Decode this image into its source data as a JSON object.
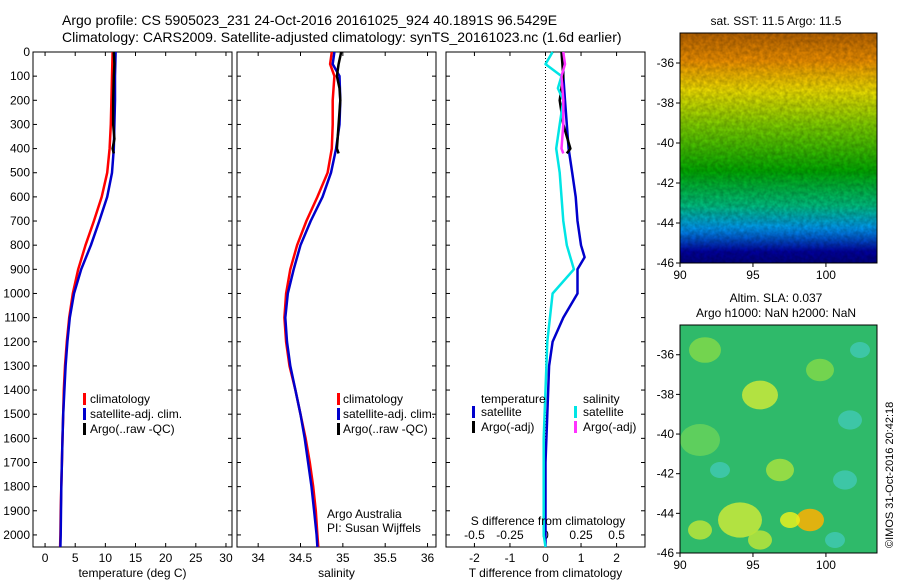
{
  "header": {
    "line1": "Argo profile: CS 5905023_231 24-Oct-2016 20161025_924 40.1891S 96.5429E",
    "line2": "Climatology: CARS2009. Satellite-adjusted climatology: synTS_20161023.nc (1.6d earlier)"
  },
  "footer": {
    "credit": "©IMOS 31-Oct-2016 20:42:18",
    "institution": "Argo Australia",
    "pi": "PI: Susan Wijffels"
  },
  "colors": {
    "climatology": "#ff0000",
    "satellite": "#0000cc",
    "argo": "#000000",
    "satellite_s": "#00e5e5",
    "argo_s": "#ff33ff"
  },
  "chart_data": [
    {
      "id": "temperature",
      "type": "line",
      "xlabel": "temperature (deg C)",
      "xlim": [
        -2,
        31
      ],
      "xticks": [
        0,
        5,
        10,
        15,
        20,
        25,
        30
      ],
      "ylim": [
        2050,
        0
      ],
      "yticks": [
        0,
        100,
        200,
        300,
        400,
        500,
        600,
        700,
        800,
        900,
        1000,
        1100,
        1200,
        1300,
        1400,
        1500,
        1600,
        1700,
        1800,
        1900,
        2000
      ],
      "legend": [
        "climatology",
        "satellite-adj. clim.",
        "Argo(..raw -QC)"
      ],
      "series": [
        {
          "name": "climatology",
          "color": "#ff0000",
          "depth": [
            0,
            100,
            200,
            300,
            400,
            500,
            600,
            700,
            800,
            900,
            1000,
            1100,
            1200,
            1300,
            1400,
            1500,
            1600,
            1700,
            1800,
            1900,
            2000,
            2050
          ],
          "values": [
            11.2,
            11.1,
            11.0,
            10.9,
            10.7,
            10.3,
            9.4,
            8.1,
            6.7,
            5.5,
            4.6,
            4.0,
            3.6,
            3.3,
            3.1,
            3.0,
            2.9,
            2.8,
            2.7,
            2.6,
            2.55,
            2.5
          ]
        },
        {
          "name": "satellite-adj. clim.",
          "color": "#0000cc",
          "depth": [
            0,
            100,
            200,
            300,
            400,
            500,
            600,
            700,
            800,
            900,
            1000,
            1100,
            1200,
            1300,
            1400,
            1500,
            1600,
            1700,
            1800,
            1900,
            2000,
            2050
          ],
          "values": [
            11.7,
            11.6,
            11.6,
            11.5,
            11.4,
            11.1,
            10.3,
            9.0,
            7.6,
            6.0,
            4.8,
            4.1,
            3.7,
            3.4,
            3.2,
            3.0,
            2.9,
            2.8,
            2.7,
            2.65,
            2.6,
            2.55
          ]
        },
        {
          "name": "Argo(..raw -QC)",
          "color": "#000000",
          "depth": [
            0,
            50,
            100,
            200,
            300,
            360,
            400,
            420
          ],
          "values": [
            11.4,
            11.5,
            11.4,
            11.3,
            11.3,
            11.5,
            11.2,
            11.4
          ]
        }
      ]
    },
    {
      "id": "salinity",
      "type": "line",
      "xlabel": "salinity",
      "xlim": [
        33.75,
        36.1
      ],
      "xticks": [
        34,
        34.5,
        35,
        35.5,
        36
      ],
      "ylim": [
        2050,
        0
      ],
      "legend": [
        "climatology",
        "satellite-adj. clim.",
        "Argo(..raw -QC)"
      ],
      "series": [
        {
          "name": "climatology",
          "color": "#ff0000",
          "depth": [
            0,
            50,
            100,
            200,
            300,
            400,
            500,
            600,
            700,
            800,
            900,
            1000,
            1100,
            1200,
            1300,
            1400,
            1500,
            1600,
            1700,
            1800,
            1900,
            2000,
            2050
          ],
          "values": [
            34.87,
            34.85,
            34.9,
            34.88,
            34.88,
            34.87,
            34.82,
            34.7,
            34.57,
            34.46,
            34.38,
            34.33,
            34.31,
            34.33,
            34.37,
            34.44,
            34.5,
            34.56,
            34.61,
            34.65,
            34.68,
            34.7,
            34.71
          ]
        },
        {
          "name": "satellite-adj. clim.",
          "color": "#0000cc",
          "depth": [
            0,
            50,
            100,
            200,
            300,
            400,
            500,
            600,
            700,
            800,
            900,
            1000,
            1100,
            1200,
            1300,
            1400,
            1500,
            1600,
            1700,
            1800,
            1900,
            2000,
            2050
          ],
          "values": [
            34.9,
            34.88,
            34.96,
            34.97,
            34.96,
            34.92,
            34.86,
            34.76,
            34.62,
            34.5,
            34.42,
            34.35,
            34.32,
            34.34,
            34.38,
            34.44,
            34.5,
            34.55,
            34.59,
            34.63,
            34.66,
            34.69,
            34.7
          ]
        },
        {
          "name": "Argo(..raw -QC)",
          "color": "#000000",
          "depth": [
            0,
            50,
            100,
            150,
            200,
            300,
            400,
            420
          ],
          "values": [
            34.98,
            34.95,
            34.93,
            34.96,
            34.97,
            34.95,
            34.93,
            34.95
          ]
        }
      ]
    },
    {
      "id": "difference",
      "type": "line",
      "xlabel": "T difference from climatology",
      "xlabel2": "S difference from climatology",
      "xlim": [
        -2.8,
        2.8
      ],
      "xticks": [
        -2,
        -1,
        0,
        1,
        2
      ],
      "s_ticks": [
        "-0.5",
        "-0.25",
        "0",
        "0.25",
        "0.5"
      ],
      "s_tick_positions": [
        -2,
        -1,
        0,
        1,
        2
      ],
      "ylim": [
        2050,
        0
      ],
      "legend_t_title": "temperature",
      "legend_s_title": "salinity",
      "legend_t": [
        "satellite",
        "Argo(-adj)"
      ],
      "legend_s": [
        "satellite",
        "Argo(-adj)"
      ],
      "series": [
        {
          "name": "T satellite",
          "color": "#0000cc",
          "depth": [
            0,
            100,
            200,
            300,
            400,
            500,
            600,
            700,
            800,
            850,
            900,
            1000,
            1100,
            1200,
            1300,
            1500,
            1700,
            1900,
            2050
          ],
          "values": [
            0.5,
            0.5,
            0.55,
            0.6,
            0.65,
            0.75,
            0.85,
            0.9,
            1.0,
            1.1,
            0.9,
            0.9,
            0.5,
            0.2,
            0.1,
            0.05,
            0.0,
            0.0,
            0.0
          ]
        },
        {
          "name": "T Argo(-adj)",
          "color": "#000000",
          "depth": [
            0,
            100,
            200,
            300,
            350,
            400,
            420
          ],
          "values": [
            0.45,
            0.5,
            0.4,
            0.5,
            0.6,
            0.7,
            0.6
          ]
        },
        {
          "name": "S satellite",
          "color": "#00e5e5",
          "depth": [
            0,
            50,
            100,
            150,
            200,
            300,
            400,
            500,
            600,
            700,
            800,
            900,
            1000,
            1200,
            1400,
            1600,
            1800,
            2000,
            2050
          ],
          "values": [
            0.2,
            0.0,
            0.45,
            0.35,
            0.5,
            0.4,
            0.3,
            0.4,
            0.45,
            0.5,
            0.6,
            0.8,
            0.2,
            0.05,
            0.0,
            -0.05,
            -0.05,
            -0.05,
            0.0
          ]
        },
        {
          "name": "S Argo(-adj)",
          "color": "#ff33ff",
          "depth": [
            0,
            50,
            100,
            200,
            300,
            400,
            420
          ],
          "values": [
            0.5,
            0.55,
            0.45,
            0.5,
            0.5,
            0.45,
            0.5
          ]
        }
      ]
    },
    {
      "id": "sst_map",
      "type": "heatmap",
      "title": "sat. SST: 11.5 Argo: 11.5",
      "xlim": [
        90,
        103.5
      ],
      "ylim": [
        -46,
        -34.5
      ],
      "xticks": [
        90,
        95,
        100
      ],
      "yticks": [
        -36,
        -38,
        -40,
        -42,
        -44,
        -46
      ]
    },
    {
      "id": "sla_map",
      "type": "heatmap",
      "title": "Altim. SLA: 0.037",
      "subtitle": "Argo h1000: NaN h2000: NaN",
      "xlim": [
        90,
        103.5
      ],
      "ylim": [
        -46,
        -34.5
      ],
      "xticks": [
        90,
        95,
        100
      ],
      "yticks": [
        -36,
        -38,
        -40,
        -42,
        -44,
        -46
      ]
    }
  ]
}
